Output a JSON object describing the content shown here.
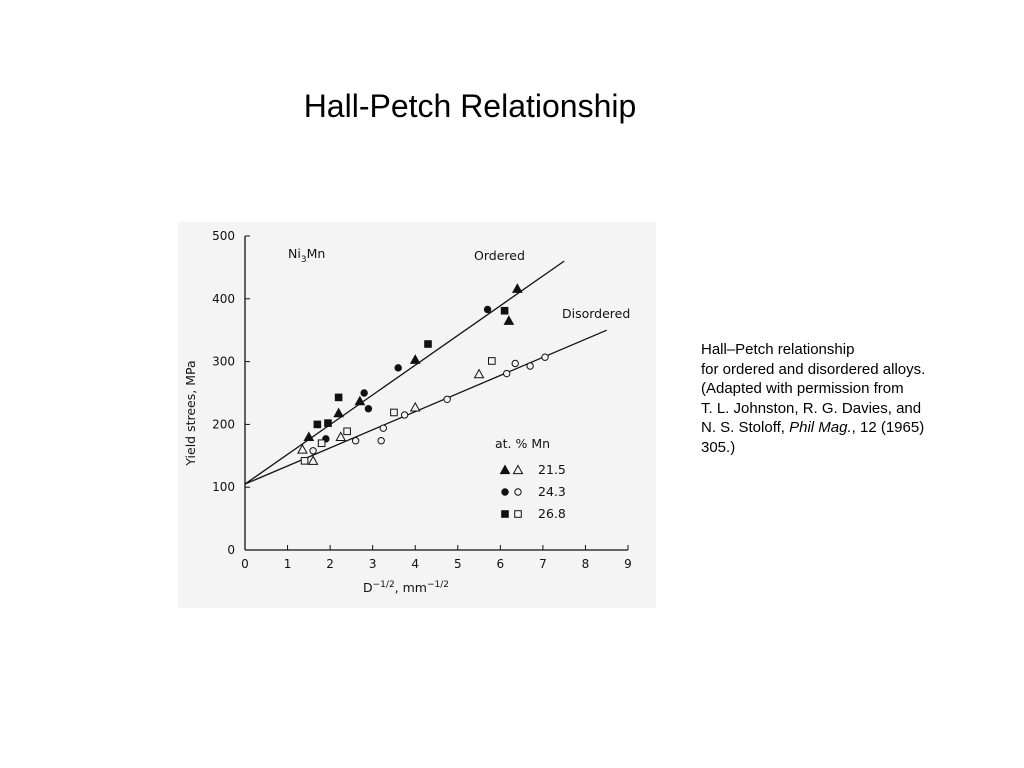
{
  "slide": {
    "title": "Hall-Petch Relationship"
  },
  "caption": {
    "line1": "Hall–Petch relationship",
    "line2": "for ordered and disordered alloys.",
    "line3": "(Adapted with permission from",
    "line4": "T. L. Johnston, R. G. Davies, and",
    "line5_pre": "N. S. Stoloff, ",
    "line5_journal": "Phil Mag.",
    "line5_post": ", 12 (1965)",
    "line6": "305.)"
  },
  "chart_data": {
    "type": "scatter",
    "title": "",
    "annotation_alloy": "Ni3Mn",
    "xlabel": "D−1/2, mm−1/2",
    "ylabel": "Yield strees, MPa",
    "xlim": [
      0,
      9
    ],
    "ylim": [
      0,
      500
    ],
    "x_ticks": [
      "0",
      "1",
      "2",
      "3",
      "4",
      "5",
      "6",
      "7",
      "8",
      "9"
    ],
    "y_ticks": [
      "0",
      "100",
      "200",
      "300",
      "400",
      "500"
    ],
    "grid": false,
    "legend_title": "at. % Mn",
    "legend_position": "lower-right",
    "fit_lines": [
      {
        "name": "Ordered",
        "from": [
          0,
          105
        ],
        "to": [
          7.5,
          460
        ]
      },
      {
        "name": "Disordered",
        "from": [
          0,
          105
        ],
        "to": [
          8.5,
          350
        ]
      }
    ],
    "series": [
      {
        "name": "21.5",
        "marker": "triangle",
        "state": "ordered",
        "filled": true,
        "x": [
          1.5,
          2.2,
          2.7,
          4.0,
          6.2,
          6.4
        ],
        "y": [
          180,
          218,
          237,
          303,
          365,
          416
        ]
      },
      {
        "name": "24.3",
        "marker": "circle",
        "state": "ordered",
        "filled": true,
        "x": [
          1.9,
          2.8,
          2.9,
          3.6,
          5.7
        ],
        "y": [
          177,
          250,
          225,
          290,
          383
        ]
      },
      {
        "name": "26.8",
        "marker": "square",
        "state": "ordered",
        "filled": true,
        "x": [
          1.7,
          1.95,
          2.2,
          4.3,
          6.1
        ],
        "y": [
          200,
          202,
          243,
          328,
          381
        ]
      },
      {
        "name": "21.5",
        "marker": "triangle",
        "state": "disordered",
        "filled": false,
        "x": [
          1.35,
          1.6,
          2.25,
          4.0,
          5.5
        ],
        "y": [
          160,
          142,
          180,
          227,
          280
        ]
      },
      {
        "name": "24.3",
        "marker": "circle",
        "state": "disordered",
        "filled": false,
        "x": [
          1.6,
          2.6,
          3.2,
          3.25,
          3.75,
          4.75,
          6.15,
          6.35,
          6.7,
          7.05
        ],
        "y": [
          158,
          174,
          174,
          194,
          215,
          240,
          281,
          297,
          293,
          307
        ]
      },
      {
        "name": "26.8",
        "marker": "square",
        "state": "disordered",
        "filled": false,
        "x": [
          1.4,
          1.8,
          2.4,
          3.5,
          5.8
        ],
        "y": [
          142,
          170,
          189,
          219,
          301
        ]
      }
    ]
  }
}
